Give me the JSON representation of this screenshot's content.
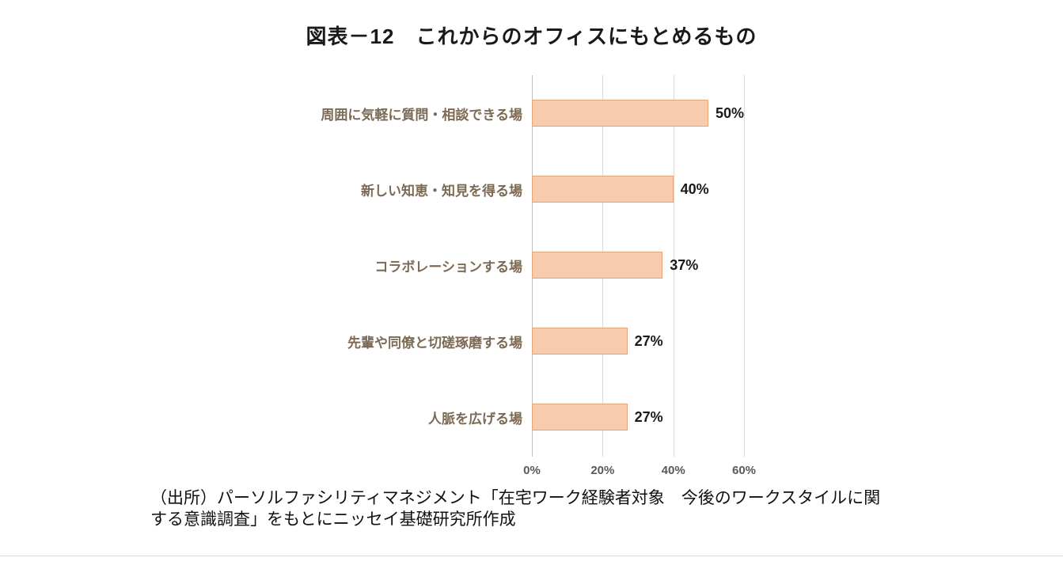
{
  "title": "図表－12　これからのオフィスにもとめるもの",
  "chart_data": {
    "type": "bar",
    "orientation": "horizontal",
    "title": "図表－12　これからのオフィスにもとめるもの",
    "categories": [
      "周囲に気軽に質問・相談できる場",
      "新しい知恵・知見を得る場",
      "コラボレーションする場",
      "先輩や同僚と切磋琢磨する場",
      "人脈を広げる場"
    ],
    "values": [
      50,
      40,
      37,
      27,
      27
    ],
    "value_labels": [
      "50%",
      "40%",
      "37%",
      "27%",
      "27%"
    ],
    "xlabel": "",
    "ylabel": "",
    "xlim": [
      0,
      60
    ],
    "x_ticks": [
      "0%",
      "20%",
      "40%",
      "60%"
    ],
    "grid": "vertical-gridlines",
    "legend": "none",
    "bar_color": "#f8cbad",
    "bar_border_color": "#e8a47c",
    "category_label_color": "#7c6a55"
  },
  "source": {
    "line1": "（出所）パーソルファシリティマネジメント「在宅ワーク経験者対象　今後のワークスタイルに関",
    "line2": "する意識調査」をもとにニッセイ基礎研究所作成"
  }
}
